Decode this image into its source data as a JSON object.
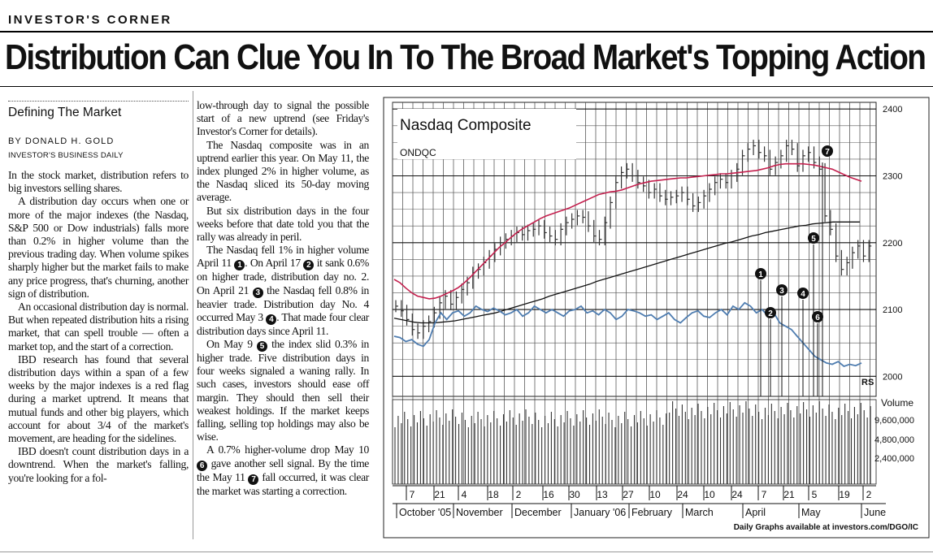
{
  "header": {
    "kicker": "INVESTOR'S CORNER",
    "headline": "Distribution Can Clue You In To The Broad Market's Topping Action"
  },
  "sidebar": {
    "section": "Defining The Market",
    "byline": "BY DONALD H. GOLD",
    "org": "INVESTOR'S BUSINESS DAILY"
  },
  "article": {
    "col1": [
      "In the stock market, distribution refers to big investors selling shares.",
      "A distribution day occurs when one or more of the major indexes (the Nasdaq, S&P 500 or Dow industrials) falls more than 0.2% in higher volume than the previous trading day. When volume spikes sharply higher but the market fails to make any price progress, that's churning, another sign of distribution.",
      "An occasional distribution day is normal. But when repeated distribution hits a rising market, that can spell trouble — often a market top, and the start of a correction.",
      "IBD research has found that several distribution days within a span of a few weeks by the major indexes is a red flag during a market uptrend. It means that mutual funds and other big players, which account for about 3/4 of the market's movement, are heading for the sidelines.",
      "IBD doesn't count distribution days in a downtrend. When the market's falling, you're looking for a fol-"
    ],
    "col2": {
      "p1": "low-through day to signal the possible start of a new uptrend (see Friday's Investor's Corner for details).",
      "p2": "The Nasdaq composite was in an uptrend earlier this year. On May 11, the index plunged 2% in higher volume, as the Nasdaq sliced its 50-day moving average.",
      "p3": "But six distribution days in the four weeks before that date told you that the rally was already in peril.",
      "p4a": "The Nasdaq fell 1% in higher volume April 11",
      "p4b": ". On April 17",
      "p4c": " it sank 0.6% on higher trade, distribution day no. 2. On April 21",
      "p4d": " the Nasdaq fell 0.8% in heavier trade. Distribution day No. 4 occurred May 3",
      "p4e": ". That made four clear distribution days since April 11.",
      "p5a": "On May 9",
      "p5b": " the index slid 0.3% in higher trade. Five distribution days in four weeks signaled a waning rally. In such cases, investors should ease off margin. They should then sell their weakest holdings. If the market keeps falling, selling top holdings may also be wise.",
      "p6a": "A 0.7% higher-volume drop May 10",
      "p6b": " gave another sell signal. By the time the May 11",
      "p6c": " fall occurred, it was clear the market was starting a correction."
    }
  },
  "markers": [
    "1",
    "2",
    "3",
    "4",
    "5",
    "6",
    "7"
  ],
  "chart_data": {
    "type": "line",
    "title": "Nasdaq Composite",
    "subtitle": "ONDQC",
    "ylim": [
      1970,
      2410
    ],
    "y_ticks": [
      2400,
      2300,
      2200,
      2100,
      2000
    ],
    "y_tick_labels": [
      "2400",
      "2300",
      "2200",
      "2100",
      "2000"
    ],
    "volume_label": "Volume",
    "volume_ticks": [
      "9,600,000",
      "4,800,000",
      "2,400,000"
    ],
    "rs_label": "RS",
    "x_day_labels": [
      "7",
      "21",
      "4",
      "18",
      "2",
      "16",
      "30",
      "13",
      "27",
      "10",
      "24",
      "10",
      "24",
      "7",
      "21",
      "5",
      "19",
      "2"
    ],
    "x_month_labels": [
      "October '05",
      "November",
      "December",
      "January '06",
      "February",
      "March",
      "April",
      "May",
      "June"
    ],
    "footer_text": "Daily Graphs available at investors.com/DGO/IC",
    "series_close": [
      2105,
      2098,
      2085,
      2070,
      2065,
      2075,
      2082,
      2095,
      2110,
      2120,
      2108,
      2118,
      2130,
      2140,
      2155,
      2160,
      2170,
      2180,
      2190,
      2200,
      2205,
      2210,
      2215,
      2212,
      2218,
      2220,
      2225,
      2215,
      2210,
      2205,
      2220,
      2230,
      2235,
      2240,
      2238,
      2225,
      2210,
      2205,
      2230,
      2260,
      2290,
      2305,
      2310,
      2300,
      2290,
      2285,
      2275,
      2280,
      2270,
      2265,
      2268,
      2270,
      2275,
      2265,
      2255,
      2260,
      2270,
      2280,
      2290,
      2295,
      2290,
      2300,
      2310,
      2330,
      2340,
      2345,
      2335,
      2330,
      2310,
      2320,
      2330,
      2345,
      2340,
      2315,
      2330,
      2335,
      2320,
      2310,
      2240,
      2220,
      2180,
      2160,
      2170,
      2185,
      2195,
      2180,
      2195
    ],
    "ma50": [
      2145,
      2140,
      2132,
      2125,
      2120,
      2118,
      2116,
      2117,
      2120,
      2124,
      2128,
      2133,
      2140,
      2148,
      2157,
      2166,
      2175,
      2184,
      2193,
      2200,
      2208,
      2215,
      2221,
      2226,
      2231,
      2236,
      2240,
      2243,
      2246,
      2249,
      2252,
      2256,
      2260,
      2264,
      2268,
      2272,
      2274,
      2276,
      2277,
      2279,
      2282,
      2285,
      2288,
      2290,
      2292,
      2293,
      2294,
      2295,
      2296,
      2297,
      2297,
      2298,
      2299,
      2300,
      2301,
      2302,
      2303,
      2303,
      2304,
      2305,
      2306,
      2307,
      2308,
      2310,
      2312,
      2315,
      2317,
      2318,
      2318,
      2318,
      2318,
      2317,
      2316,
      2314,
      2312,
      2310,
      2306,
      2302,
      2298,
      2295,
      2292
    ],
    "ma200": [
      2087,
      2085,
      2083,
      2081,
      2080,
      2080,
      2080,
      2081,
      2082,
      2083,
      2085,
      2087,
      2089,
      2091,
      2093,
      2095,
      2098,
      2101,
      2104,
      2107,
      2110,
      2113,
      2116,
      2120,
      2123,
      2126,
      2129,
      2132,
      2135,
      2138,
      2142,
      2145,
      2148,
      2151,
      2154,
      2157,
      2160,
      2163,
      2166,
      2169,
      2172,
      2175,
      2178,
      2181,
      2184,
      2187,
      2190,
      2193,
      2196,
      2199,
      2201,
      2204,
      2207,
      2210,
      2212,
      2215,
      2217,
      2219,
      2221,
      2223,
      2225,
      2226,
      2228,
      2229,
      2230,
      2231,
      2231,
      2231,
      2231,
      2231
    ],
    "rs": [
      2060,
      2058,
      2052,
      2055,
      2048,
      2045,
      2055,
      2080,
      2095,
      2085,
      2095,
      2098,
      2090,
      2095,
      2105,
      2100,
      2097,
      2102,
      2098,
      2092,
      2095,
      2100,
      2090,
      2095,
      2105,
      2100,
      2095,
      2100,
      2095,
      2090,
      2098,
      2100,
      2105,
      2095,
      2098,
      2092,
      2100,
      2095,
      2085,
      2090,
      2100,
      2098,
      2095,
      2090,
      2092,
      2085,
      2090,
      2095,
      2085,
      2080,
      2088,
      2095,
      2098,
      2090,
      2088,
      2095,
      2100,
      2092,
      2105,
      2100,
      2110,
      2105,
      2095,
      2100,
      2090,
      2095,
      2080,
      2075,
      2070,
      2060,
      2050,
      2040,
      2030,
      2025,
      2020,
      2018,
      2022,
      2015,
      2018,
      2016,
      2020
    ]
  }
}
